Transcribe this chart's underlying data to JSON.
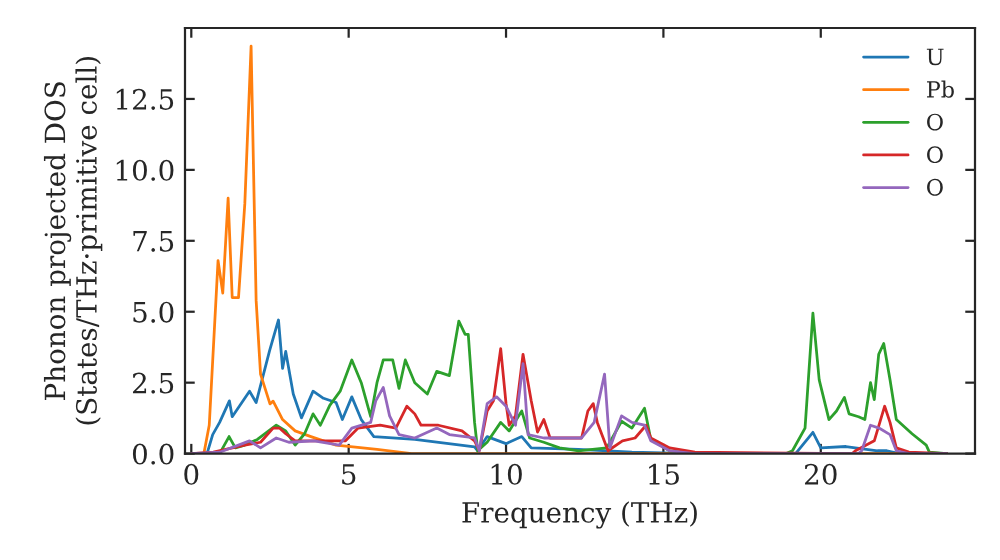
{
  "chart_data": {
    "type": "line",
    "xlabel": "Frequency (THz)",
    "ylabel": "Phonon projected DOS\n(States/THz·primitive cell)",
    "xlim": [
      -0.2,
      24.9
    ],
    "ylim": [
      0,
      15.0
    ],
    "xticks": [
      0,
      5,
      10,
      15,
      20
    ],
    "yticks": [
      {
        "value": 0,
        "label": "0.0"
      },
      2.5,
      {
        "value": 5,
        "label": "5.0"
      },
      7.5,
      {
        "value": 10,
        "label": "10.0"
      },
      12.5
    ],
    "grid": false,
    "legend": "top right",
    "marker": "none",
    "line_style": "solid",
    "series": [
      {
        "name": "U",
        "color": "#1f77b4",
        "x": [
          0,
          0.5,
          0.68,
          0.9,
          1.21,
          1.3,
          1.85,
          2.06,
          2.49,
          2.77,
          2.9,
          3.0,
          3.24,
          3.5,
          3.87,
          4.2,
          4.6,
          4.8,
          5.1,
          5.4,
          5.8,
          7.1,
          9.0,
          9.1,
          9.4,
          10.0,
          10.5,
          10.8,
          12.3,
          14.0,
          16.0,
          19.2,
          19.75,
          20.0,
          20.8,
          21.8,
          22.1,
          22.5,
          24.0
        ],
        "values": [
          0,
          0,
          0.67,
          1.1,
          1.86,
          1.3,
          2.2,
          1.8,
          3.64,
          4.71,
          3.0,
          3.6,
          2.1,
          1.26,
          2.2,
          1.95,
          1.8,
          1.2,
          2.0,
          1.2,
          0.6,
          0.5,
          0.24,
          0.1,
          0.6,
          0.35,
          0.6,
          0.2,
          0.15,
          0.05,
          0,
          0,
          0.75,
          0.2,
          0.25,
          0.1,
          0.1,
          0,
          0
        ]
      },
      {
        "name": "Pb",
        "color": "#ff7f0e",
        "x": [
          0,
          0.4,
          0.57,
          0.85,
          1.0,
          1.17,
          1.3,
          1.5,
          1.7,
          1.9,
          2.06,
          2.2,
          2.5,
          2.6,
          2.9,
          3.3,
          3.8,
          4.6,
          5.9,
          7.0,
          24.0
        ],
        "values": [
          0,
          0,
          1.0,
          6.8,
          5.66,
          9.0,
          5.5,
          5.5,
          8.8,
          14.36,
          5.4,
          2.8,
          1.75,
          1.85,
          1.2,
          0.8,
          0.6,
          0.3,
          0.15,
          0,
          0
        ]
      },
      {
        "name": "O",
        "color": "#2ca02c",
        "x": [
          0,
          0.9,
          1.2,
          1.4,
          1.7,
          2.1,
          2.7,
          3.0,
          3.3,
          3.6,
          3.87,
          4.1,
          4.4,
          4.73,
          5.1,
          5.4,
          5.7,
          5.9,
          6.1,
          6.4,
          6.6,
          6.8,
          7.1,
          7.5,
          7.8,
          8.2,
          8.5,
          8.7,
          8.8,
          9.0,
          9.1,
          9.4,
          9.83,
          10.1,
          10.5,
          10.75,
          11.2,
          11.7,
          12.3,
          13.2,
          13.67,
          14.0,
          14.4,
          14.6,
          15.2,
          16.0,
          18.9,
          19.1,
          19.5,
          19.75,
          19.95,
          20.26,
          20.5,
          20.75,
          20.9,
          21.2,
          21.4,
          21.58,
          21.7,
          21.84,
          22.0,
          22.2,
          22.4,
          22.9,
          23.35,
          23.45,
          24.0
        ],
        "values": [
          0,
          0,
          0.6,
          0.2,
          0.3,
          0.5,
          1.0,
          0.8,
          0.3,
          0.7,
          1.4,
          1.0,
          1.7,
          2.2,
          3.3,
          2.5,
          1.3,
          2.5,
          3.3,
          3.3,
          2.3,
          3.3,
          2.5,
          2.1,
          2.9,
          2.75,
          4.67,
          4.2,
          4.2,
          1.1,
          0.1,
          0.4,
          1.1,
          0.8,
          1.5,
          0.55,
          0.4,
          0.2,
          0.1,
          0.2,
          1.14,
          0.9,
          1.6,
          0.5,
          0.1,
          0,
          0,
          0.1,
          0.9,
          4.95,
          2.6,
          1.2,
          1.5,
          1.98,
          1.4,
          1.3,
          1.2,
          2.5,
          1.9,
          3.5,
          3.88,
          2.6,
          1.2,
          0.7,
          0.3,
          0.05,
          0
        ]
      },
      {
        "name": "O",
        "color": "#d62728",
        "x": [
          0,
          0.7,
          1.7,
          2.2,
          2.6,
          2.8,
          3.0,
          3.3,
          3.9,
          4.9,
          5.3,
          6.0,
          6.5,
          6.85,
          7.1,
          7.3,
          7.85,
          8.6,
          9.0,
          9.15,
          9.4,
          9.6,
          9.83,
          10.0,
          10.1,
          10.3,
          10.54,
          10.8,
          11.0,
          11.2,
          11.4,
          12.4,
          12.6,
          12.77,
          12.9,
          13.24,
          13.7,
          14.1,
          14.45,
          14.6,
          15.2,
          16.0,
          21.0,
          21.1,
          21.7,
          22.03,
          22.2,
          22.4,
          22.8,
          24.0
        ],
        "values": [
          0,
          0.05,
          0.3,
          0.4,
          0.9,
          0.9,
          0.7,
          0.45,
          0.45,
          0.45,
          0.9,
          1.0,
          0.9,
          1.67,
          1.4,
          1.0,
          1.0,
          0.8,
          0.45,
          0.1,
          1.5,
          1.86,
          3.7,
          1.76,
          1.0,
          1.33,
          3.5,
          1.86,
          0.76,
          1.2,
          0.55,
          0.55,
          1.5,
          1.76,
          1.1,
          0.1,
          0.45,
          0.55,
          1.0,
          0.55,
          0.2,
          0.05,
          0,
          0.1,
          0.45,
          1.67,
          1.1,
          0.2,
          0.05,
          0
        ]
      },
      {
        "name": "O",
        "color": "#9467bd",
        "x": [
          0,
          0.9,
          1.85,
          2.2,
          2.7,
          3.1,
          3.9,
          4.7,
          5.1,
          5.7,
          5.86,
          6.1,
          6.3,
          6.6,
          7.1,
          7.8,
          8.2,
          9.0,
          9.15,
          9.4,
          9.7,
          10.0,
          10.3,
          10.54,
          10.7,
          11.2,
          12.0,
          12.4,
          12.8,
          13.13,
          13.3,
          13.67,
          14.0,
          14.4,
          14.6,
          15.2,
          16.0,
          21.2,
          21.3,
          21.58,
          21.85,
          22.2,
          22.4,
          22.8,
          24.0
        ],
        "values": [
          0,
          0.05,
          0.45,
          0.2,
          0.55,
          0.4,
          0.45,
          0.3,
          0.9,
          1.1,
          1.86,
          2.33,
          1.33,
          0.67,
          0.55,
          0.9,
          0.67,
          0.55,
          0.1,
          1.76,
          2.0,
          1.67,
          1.0,
          3.17,
          0.67,
          0.55,
          0.55,
          0.55,
          1.1,
          2.8,
          0.2,
          1.33,
          1.1,
          1.0,
          0.45,
          0.1,
          0,
          0,
          0.1,
          1.0,
          0.9,
          0.67,
          0.1,
          0,
          0
        ]
      }
    ]
  }
}
